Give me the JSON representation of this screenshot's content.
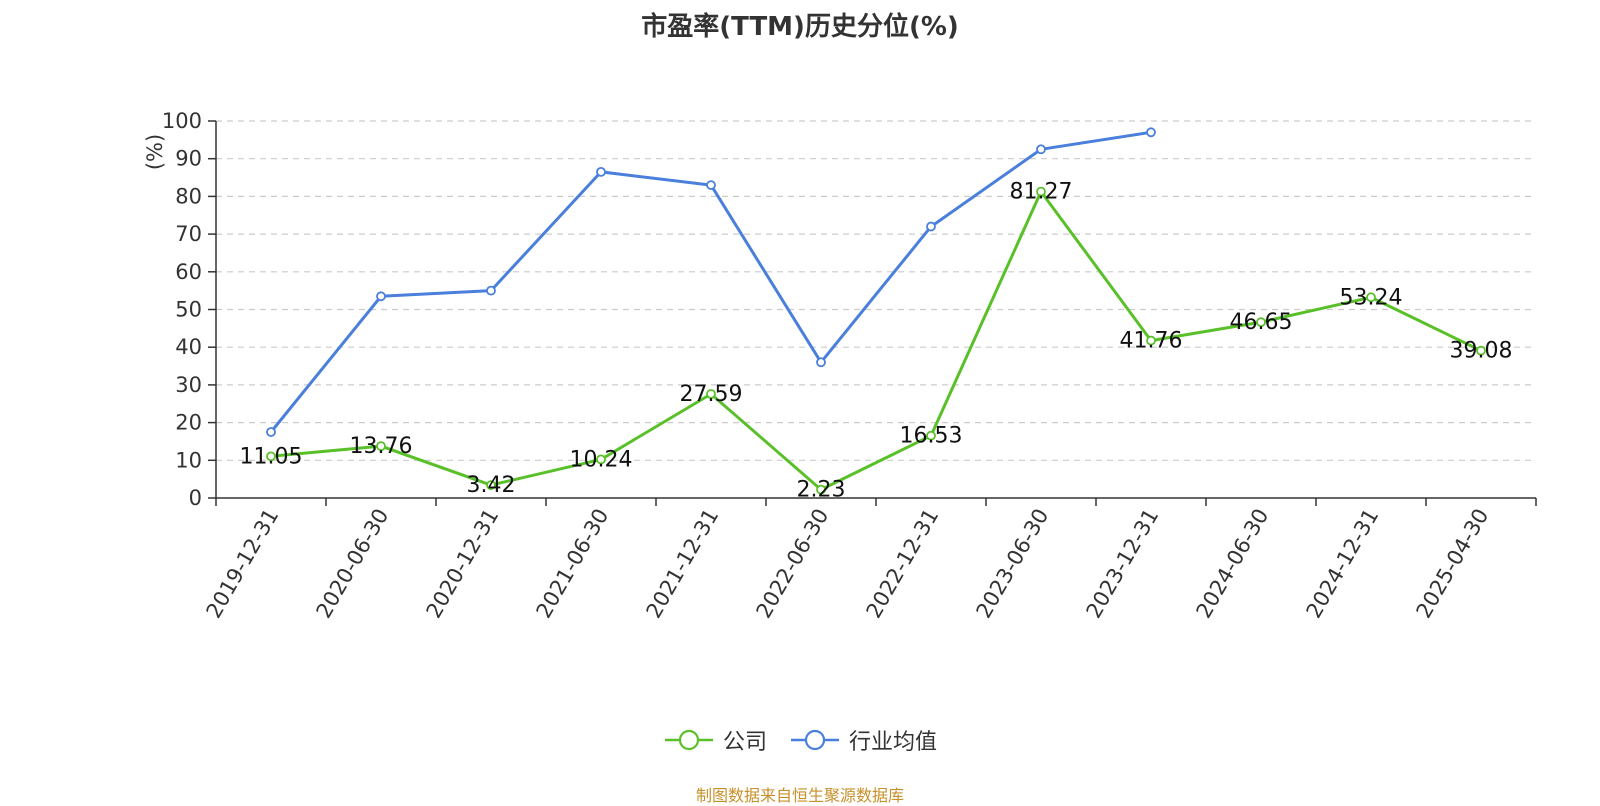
{
  "chart_data": {
    "type": "line",
    "title": "市盈率(TTM)历史分位(%)",
    "ylabel": "(%)",
    "xlabel": "",
    "ylim": [
      0,
      100
    ],
    "yticks": [
      0,
      10,
      20,
      30,
      40,
      50,
      60,
      70,
      80,
      90,
      100
    ],
    "grid": true,
    "legend_position": "bottom",
    "categories": [
      "2019-12-31",
      "2020-06-30",
      "2020-12-31",
      "2021-06-30",
      "2021-12-31",
      "2022-06-30",
      "2022-12-31",
      "2023-06-30",
      "2023-12-31",
      "2024-06-30",
      "2024-12-31",
      "2025-04-30"
    ],
    "series": [
      {
        "name": "公司",
        "color": "#5ac02a",
        "show_labels": true,
        "values": [
          11.05,
          13.76,
          3.42,
          10.24,
          27.59,
          2.23,
          16.53,
          81.27,
          41.76,
          46.65,
          53.24,
          39.08
        ]
      },
      {
        "name": "行业均值",
        "color": "#4a7fdc",
        "show_labels": false,
        "values": [
          17.5,
          53.5,
          55.0,
          86.5,
          83.0,
          36.0,
          72.0,
          92.5,
          97.0,
          null,
          null,
          null
        ]
      }
    ]
  },
  "source_text": "制图数据来自恒生聚源数据库"
}
